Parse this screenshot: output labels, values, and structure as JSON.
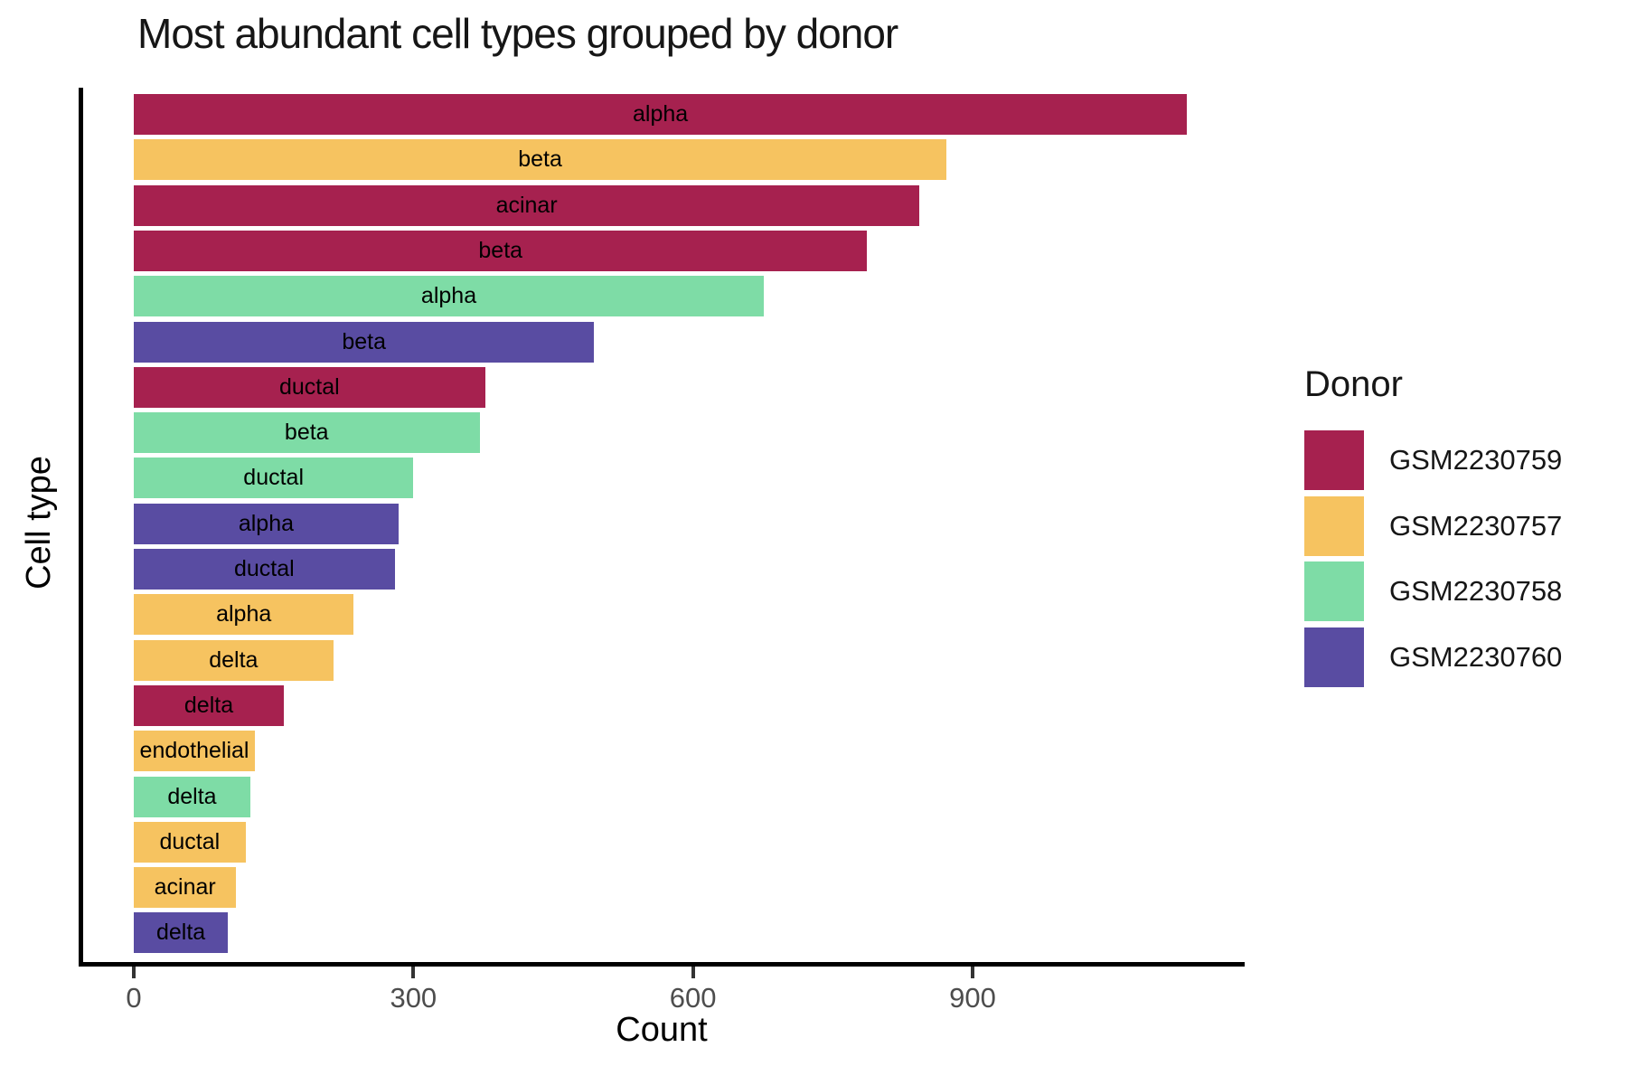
{
  "title": "Most abundant cell types grouped by donor",
  "axes": {
    "x_label": "Count",
    "y_label": "Cell type"
  },
  "legend": {
    "title": "Donor",
    "entries": [
      {
        "label": "GSM2230759",
        "color": "#A6214F"
      },
      {
        "label": "GSM2230757",
        "color": "#F6C360"
      },
      {
        "label": "GSM2230758",
        "color": "#7EDCA6"
      },
      {
        "label": "GSM2230760",
        "color": "#594CA2"
      }
    ]
  },
  "chart_data": {
    "type": "bar",
    "orientation": "horizontal",
    "title": "Most abundant cell types grouped by donor",
    "xlabel": "Count",
    "ylabel": "Cell type",
    "xlim": [
      0,
      1200
    ],
    "x_ticks": [
      0,
      300,
      600,
      900
    ],
    "grid": false,
    "legend_position": "right",
    "legend_title": "Donor",
    "bar_label_position": "center-inside",
    "series_colors": {
      "GSM2230759": "#A6214F",
      "GSM2230757": "#F6C360",
      "GSM2230758": "#7EDCA6",
      "GSM2230760": "#594CA2"
    },
    "bars": [
      {
        "cell_type": "alpha",
        "donor": "GSM2230759",
        "count": 1130
      },
      {
        "cell_type": "beta",
        "donor": "GSM2230757",
        "count": 872
      },
      {
        "cell_type": "acinar",
        "donor": "GSM2230759",
        "count": 843
      },
      {
        "cell_type": "beta",
        "donor": "GSM2230759",
        "count": 787
      },
      {
        "cell_type": "alpha",
        "donor": "GSM2230758",
        "count": 676
      },
      {
        "cell_type": "beta",
        "donor": "GSM2230760",
        "count": 494
      },
      {
        "cell_type": "ductal",
        "donor": "GSM2230759",
        "count": 377
      },
      {
        "cell_type": "beta",
        "donor": "GSM2230758",
        "count": 371
      },
      {
        "cell_type": "ductal",
        "donor": "GSM2230758",
        "count": 300
      },
      {
        "cell_type": "alpha",
        "donor": "GSM2230760",
        "count": 284
      },
      {
        "cell_type": "ductal",
        "donor": "GSM2230760",
        "count": 280
      },
      {
        "cell_type": "alpha",
        "donor": "GSM2230757",
        "count": 236
      },
      {
        "cell_type": "delta",
        "donor": "GSM2230757",
        "count": 214
      },
      {
        "cell_type": "delta",
        "donor": "GSM2230759",
        "count": 161
      },
      {
        "cell_type": "endothelial",
        "donor": "GSM2230757",
        "count": 130
      },
      {
        "cell_type": "delta",
        "donor": "GSM2230758",
        "count": 125
      },
      {
        "cell_type": "ductal",
        "donor": "GSM2230757",
        "count": 120
      },
      {
        "cell_type": "acinar",
        "donor": "GSM2230757",
        "count": 110
      },
      {
        "cell_type": "delta",
        "donor": "GSM2230760",
        "count": 101
      }
    ]
  }
}
